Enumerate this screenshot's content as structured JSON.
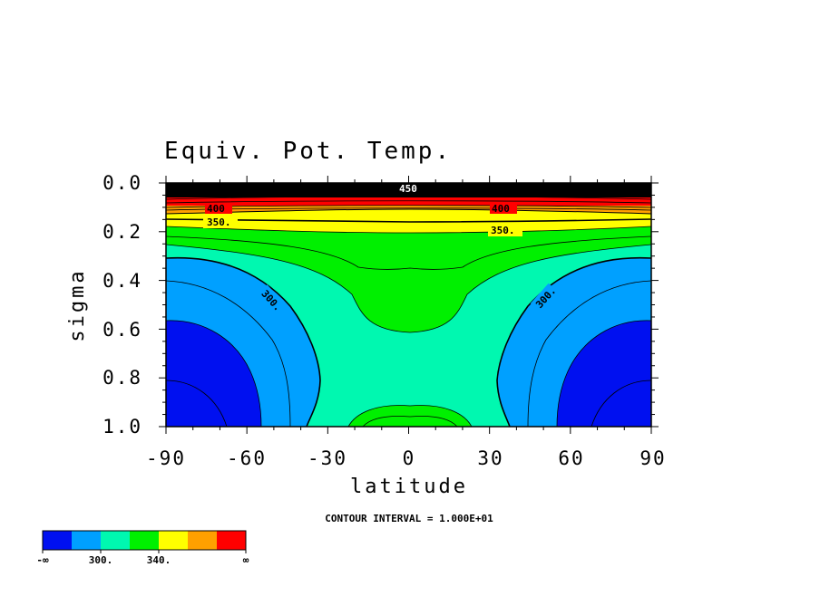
{
  "chart_data": {
    "type": "heatmap",
    "subtype": "filled-contour",
    "title": "Equiv. Pot. Temp.",
    "xlabel": "latitude",
    "ylabel": "sigma",
    "xlim": [
      -90,
      90
    ],
    "ylim": [
      1.0,
      0.0
    ],
    "x_ticks": [
      "-90",
      "-60",
      "-30",
      "0",
      "30",
      "60",
      "90"
    ],
    "y_ticks": [
      "0.0",
      "0.2",
      "0.4",
      "0.6",
      "0.8",
      "1.0"
    ],
    "contour_interval_text": "CONTOUR INTERVAL = 1.000E+01",
    "contour_labels": [
      "300.",
      "300.",
      "350.",
      "350.",
      "400",
      "400",
      "450"
    ],
    "fill_levels": [
      300,
      340
    ],
    "colorbar": {
      "colors": [
        "#0010f0",
        "#00a0ff",
        "#00f8b0",
        "#00f000",
        "#ffff00",
        "#ffa000",
        "#ff0000"
      ],
      "labels": [
        "-∞",
        "300.",
        "340.",
        "∞"
      ]
    },
    "colors": {
      "lt280": "#0010f0",
      "b280_300": "#00a0ff",
      "b300_320": "#00f8b0",
      "b320_340": "#00f000",
      "b340_360": "#ffff00",
      "b360_380": "#ffa000",
      "b380_400": "#ff0000",
      "high": "#000000"
    }
  }
}
